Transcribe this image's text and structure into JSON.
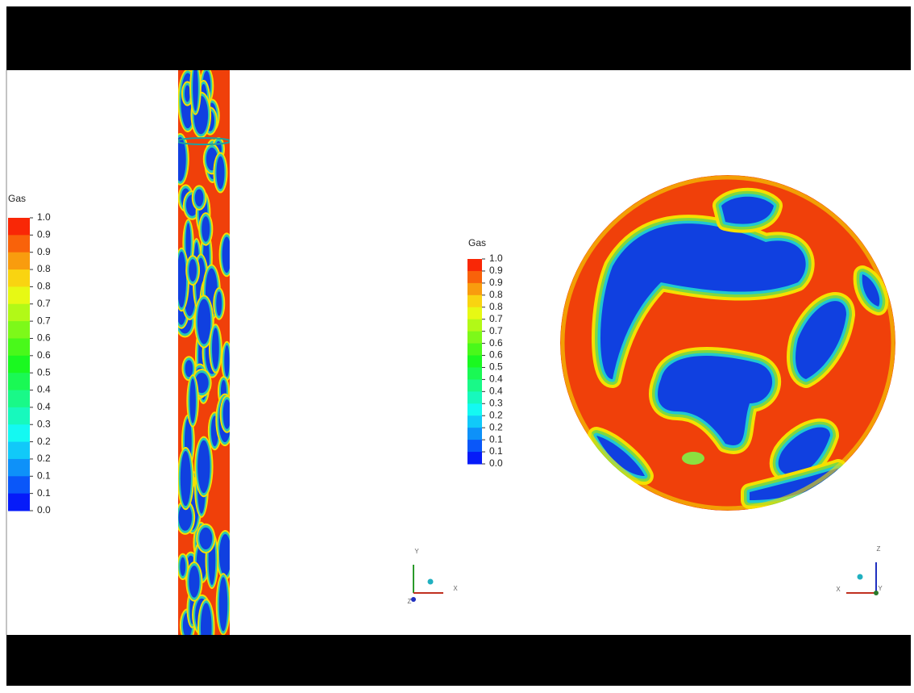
{
  "left_legend": {
    "title": "Gas",
    "labels": [
      "1.0",
      "0.9",
      "0.9",
      "0.8",
      "0.8",
      "0.7",
      "0.7",
      "0.6",
      "0.6",
      "0.5",
      "0.4",
      "0.4",
      "0.3",
      "0.2",
      "0.2",
      "0.1",
      "0.1",
      "0.0"
    ]
  },
  "right_legend": {
    "title": "Gas",
    "labels": [
      "1.0",
      "0.9",
      "0.9",
      "0.8",
      "0.8",
      "0.7",
      "0.7",
      "0.6",
      "0.6",
      "0.5",
      "0.4",
      "0.4",
      "0.3",
      "0.2",
      "0.2",
      "0.1",
      "0.1",
      "0.0"
    ]
  },
  "left_axes": {
    "y": "Y",
    "x": "X",
    "z": "Z"
  },
  "right_axes": {
    "z": "Z",
    "x": "X",
    "y": "Y"
  }
}
